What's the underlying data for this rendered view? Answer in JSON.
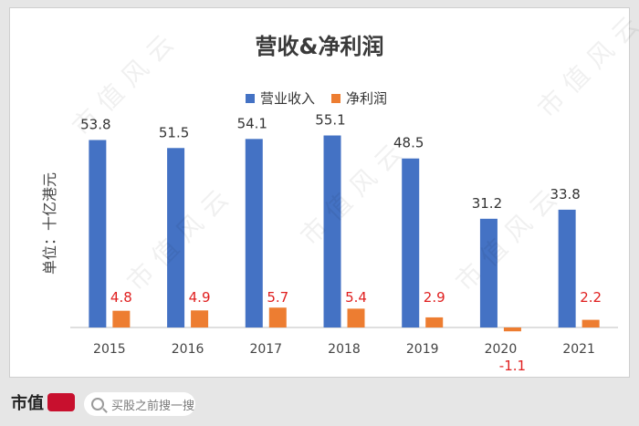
{
  "chart_data": {
    "type": "bar",
    "title": "营收&净利润",
    "ylabel": "单位：十亿港元",
    "categories": [
      "2015",
      "2016",
      "2017",
      "2018",
      "2019",
      "2020",
      "2021"
    ],
    "series": [
      {
        "name": "营业收入",
        "color": "#4472c4",
        "values": [
          53.8,
          51.5,
          54.1,
          55.1,
          48.5,
          31.2,
          33.8
        ]
      },
      {
        "name": "净利润",
        "color": "#ed7d31",
        "values": [
          4.8,
          4.9,
          5.7,
          5.4,
          2.9,
          -1.1,
          2.2
        ]
      }
    ],
    "ylim": [
      -3,
      66
    ],
    "legend_position": "top-center",
    "grid": false,
    "revenue_label_color": "#333333",
    "profit_label_color": "#e02020"
  },
  "watermark": "市值风云",
  "footer": {
    "logo_text": "市值",
    "search_placeholder": "买股之前搜一搜"
  }
}
